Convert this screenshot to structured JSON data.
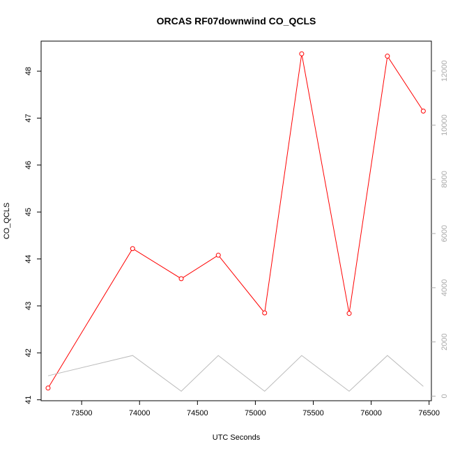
{
  "chart_data": {
    "type": "line",
    "title": "ORCAS RF07downwind CO_QCLS",
    "xlabel": "UTC Seconds",
    "ylabel": "CO_QCLS",
    "xlim": [
      73150,
      76520
    ],
    "ylim": [
      40.98,
      48.64
    ],
    "y2lim": [
      -170,
      13100
    ],
    "x_ticks": [
      73500,
      74000,
      74500,
      75000,
      75500,
      76000,
      76500
    ],
    "y_ticks": [
      41,
      42,
      43,
      44,
      45,
      46,
      47,
      48
    ],
    "y2_ticks": [
      0,
      2000,
      4000,
      6000,
      8000,
      10000,
      12000
    ],
    "grid": false,
    "series": [
      {
        "axis": "left",
        "color": "#ff0000",
        "marker": "open-circle",
        "x": [
          73210,
          73940,
          74360,
          74680,
          75080,
          75400,
          75810,
          76140,
          76450
        ],
        "y": [
          41.25,
          44.22,
          43.58,
          44.08,
          42.85,
          48.37,
          42.84,
          48.32,
          47.15
        ]
      },
      {
        "axis": "right",
        "color": "#bbbbbb",
        "marker": "none",
        "x": [
          73210,
          73940,
          74360,
          74680,
          75080,
          75400,
          75810,
          76140,
          76450
        ],
        "y": [
          750,
          1500,
          180,
          1500,
          180,
          1500,
          180,
          1500,
          360
        ]
      }
    ]
  }
}
